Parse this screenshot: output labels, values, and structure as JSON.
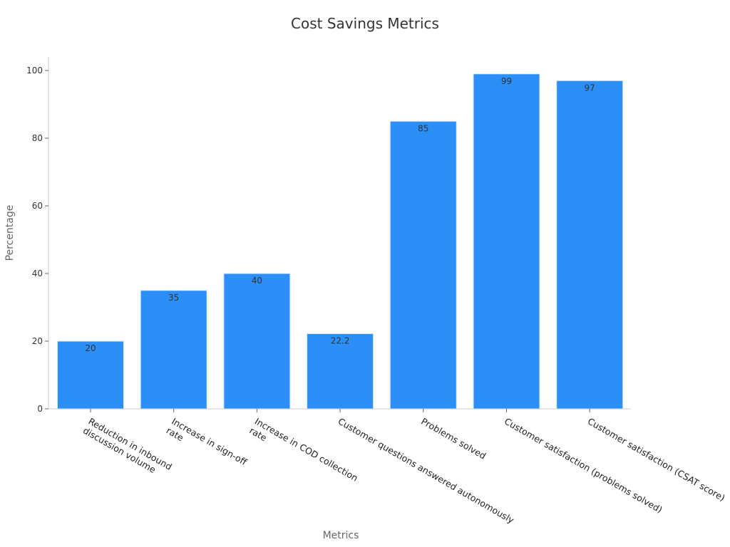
{
  "chart_data": {
    "type": "bar",
    "title": "Cost Savings Metrics",
    "xlabel": "Metrics",
    "ylabel": "Percentage",
    "categories": [
      "Reduction in inbound discussion volume",
      "Increase in sign-off rate",
      "Increase in COD collection rate",
      "Customer questions answered autonomously",
      "Problems solved",
      "Customer satisfaction (problems solved)",
      "Customer satisfaction (CSAT score)"
    ],
    "category_lines": [
      [
        "Reduction in inbound",
        "discussion volume"
      ],
      [
        "Increase in sign-off",
        "rate"
      ],
      [
        "Increase in COD collection",
        "rate"
      ],
      [
        "Customer questions answered autonomously"
      ],
      [
        "Problems solved"
      ],
      [
        "Customer satisfaction (problems solved)"
      ],
      [
        "Customer satisfaction (CSAT score)"
      ]
    ],
    "values": [
      20,
      35,
      40,
      22.2,
      85,
      99,
      97
    ],
    "value_labels": [
      "20",
      "35",
      "40",
      "22.2",
      "85",
      "99",
      "97"
    ],
    "yticks": [
      0,
      20,
      40,
      60,
      80,
      100
    ],
    "ylim": [
      0,
      104
    ],
    "bar_color": "#2b8ff7",
    "grid": false,
    "legend": "none"
  }
}
